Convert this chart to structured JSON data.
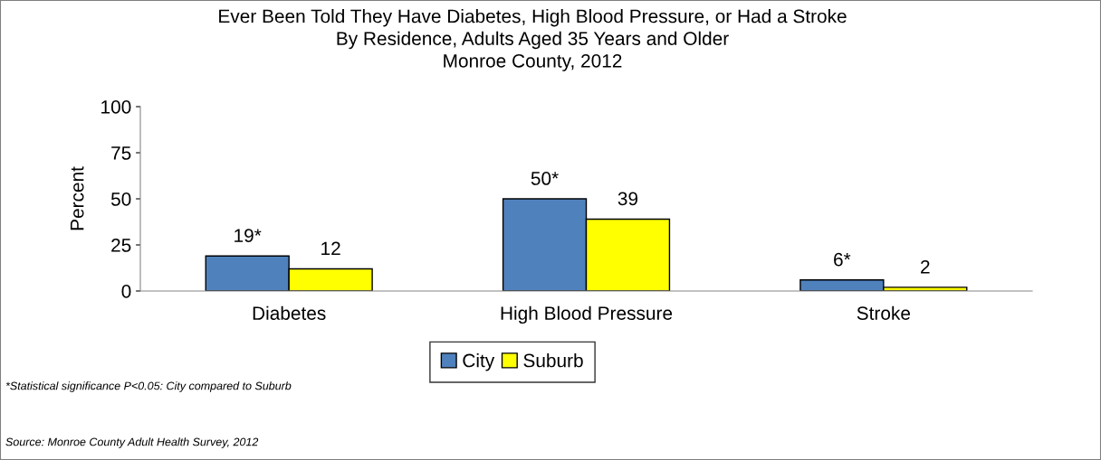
{
  "chart_data": {
    "type": "bar",
    "title": "Ever Been Told They Have Diabetes, High Blood Pressure, or Had a Stroke\nBy Residence, Adults Aged 35 Years and Older\nMonroe County, 2012",
    "ylabel": "Percent",
    "categories": [
      "Diabetes",
      "High Blood Pressure",
      "Stroke"
    ],
    "series": [
      {
        "name": "City",
        "color": "#4f81bd",
        "values": [
          19,
          50,
          6
        ],
        "value_labels": [
          "19*",
          "50*",
          "6*"
        ]
      },
      {
        "name": "Suburb",
        "color": "#ffff00",
        "values": [
          12,
          39,
          2
        ],
        "value_labels": [
          "12",
          "39",
          "2"
        ]
      }
    ],
    "ylim": [
      0,
      100
    ],
    "yticks": [
      0,
      25,
      50,
      75,
      100
    ],
    "grid": false,
    "legend": "bottom",
    "annotations": [
      "*Statistical significance P<0.05: City compared to Suburb",
      "Source: Monroe County Adult Health Survey, 2012"
    ]
  }
}
